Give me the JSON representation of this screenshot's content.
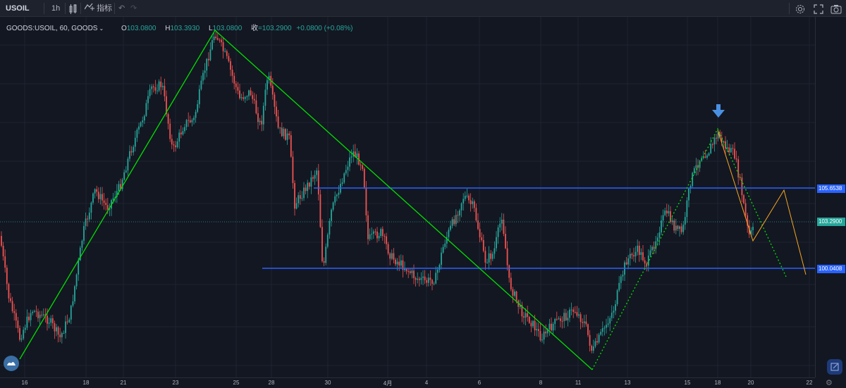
{
  "toolbar": {
    "symbol": "USOIL",
    "interval": "1h",
    "indicators_label": "指标"
  },
  "legend": {
    "title": "GOODS:USOIL, 60, GOODS",
    "o_label": "O",
    "o": "103.0800",
    "h_label": "H",
    "h": "103.3930",
    "l_label": "L",
    "l": "103.0800",
    "c_label": "收",
    "c": "=103.2900",
    "change": "+0.0800 (+0.08%)"
  },
  "price_labels": {
    "level_high": "105.6538",
    "current": "103.2900",
    "level_low": "100.0408"
  },
  "x_ticks": [
    "16",
    "18",
    "21",
    "23",
    "25",
    "28",
    "30",
    "4月",
    "4",
    "6",
    "8",
    "11",
    "13",
    "15",
    "18",
    "20",
    "22"
  ],
  "colors": {
    "background": "#131722",
    "up": "#26a69a",
    "down": "#ef5350",
    "level_line": "#2962ff",
    "trend_line": "#00e000",
    "projection": "#f5a623"
  },
  "icons": {
    "compare": "compare-icon",
    "indicators": "indicators-icon",
    "undo": "undo-icon",
    "redo": "redo-icon",
    "settings": "gear-icon",
    "fullscreen": "fullscreen-icon",
    "snapshot": "camera-icon",
    "marker": "down-arrow-icon"
  }
}
